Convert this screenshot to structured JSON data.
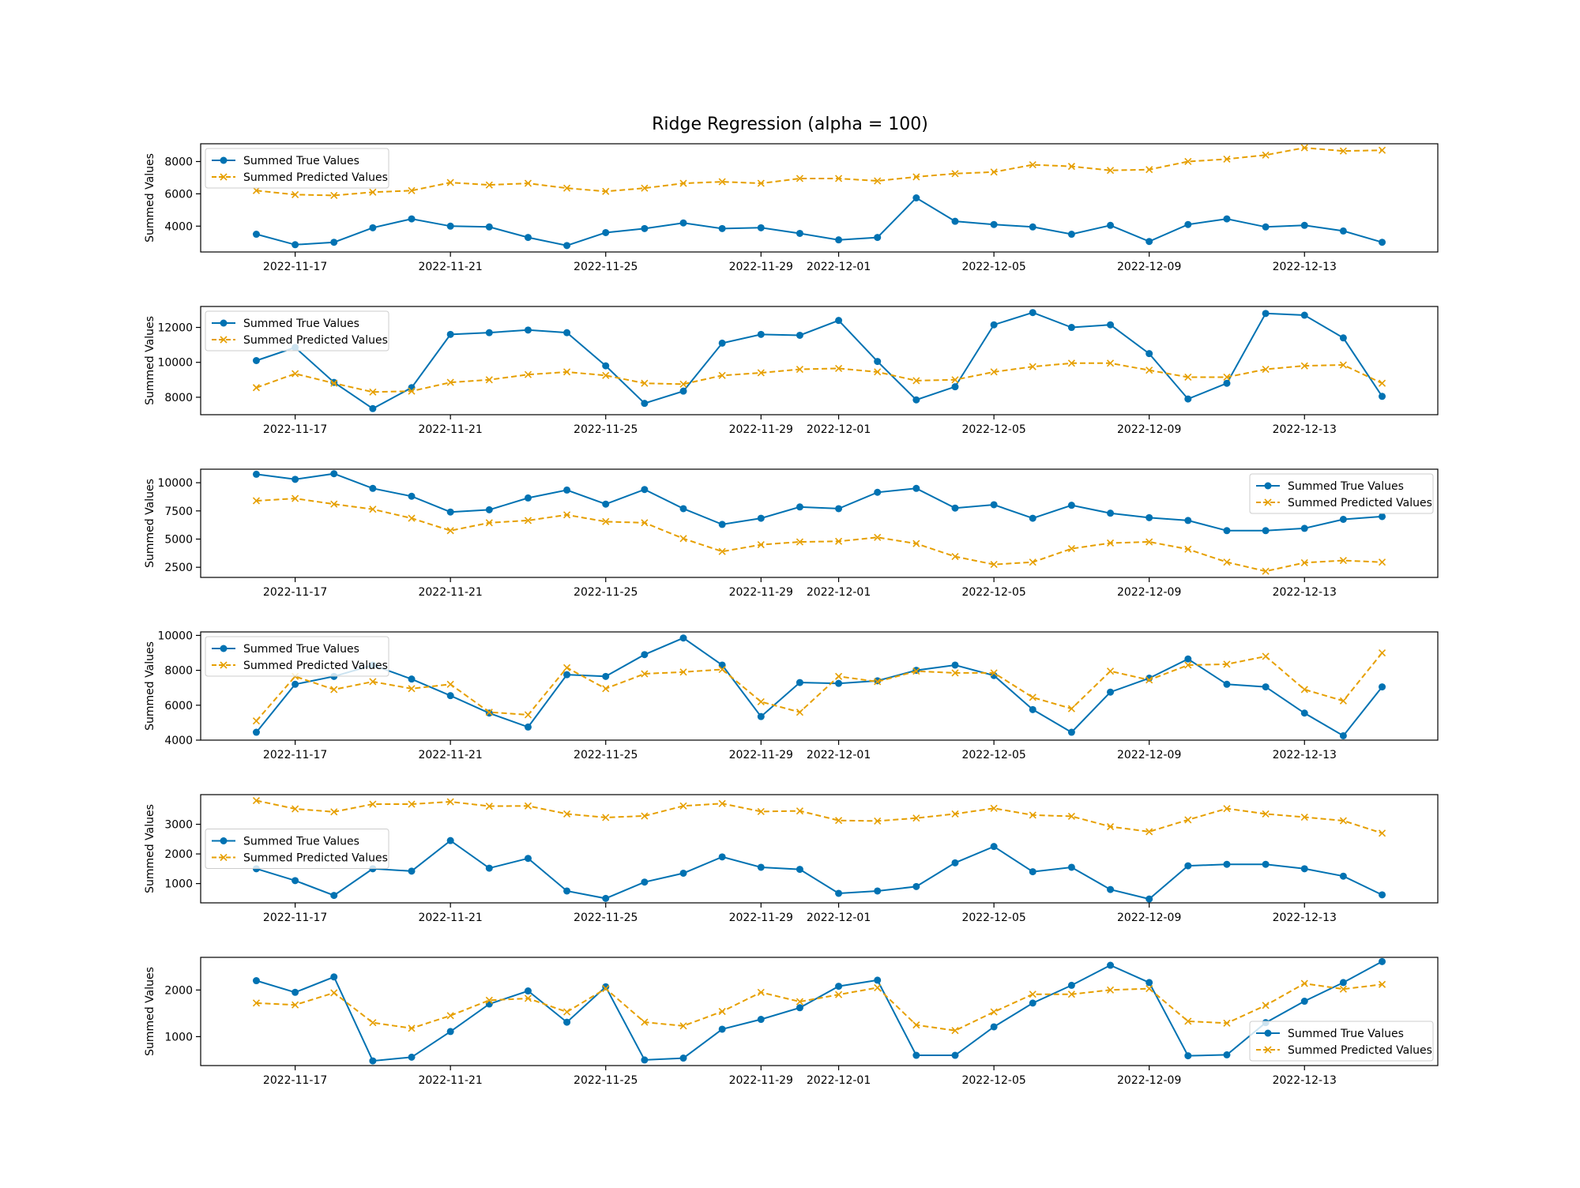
{
  "figure": {
    "title": "Ridge Regression (alpha = 100)",
    "colors": {
      "true": "#0072B2",
      "predicted": "#E69F00"
    }
  },
  "chart_data": [
    {
      "type": "line",
      "ylabel": "Summed Values",
      "xlabel": "",
      "x": [
        "2022-11-16",
        "2022-11-17",
        "2022-11-18",
        "2022-11-19",
        "2022-11-20",
        "2022-11-21",
        "2022-11-22",
        "2022-11-23",
        "2022-11-24",
        "2022-11-25",
        "2022-11-26",
        "2022-11-27",
        "2022-11-28",
        "2022-11-29",
        "2022-11-30",
        "2022-12-01",
        "2022-12-02",
        "2022-12-03",
        "2022-12-04",
        "2022-12-05",
        "2022-12-06",
        "2022-12-07",
        "2022-12-08",
        "2022-12-09",
        "2022-12-10",
        "2022-12-11",
        "2022-12-12",
        "2022-12-13",
        "2022-12-14",
        "2022-12-15"
      ],
      "xticks": [
        "2022-11-17",
        "2022-11-21",
        "2022-11-25",
        "2022-11-29",
        "2022-12-01",
        "2022-12-05",
        "2022-12-09",
        "2022-12-13"
      ],
      "ylim": [
        2400,
        9100
      ],
      "yticks": [
        4000,
        6000,
        8000
      ],
      "legend": "upper left",
      "series": [
        {
          "name": "Summed True Values",
          "values": [
            3500,
            2850,
            3000,
            3900,
            4450,
            4000,
            3950,
            3300,
            2800,
            3600,
            3850,
            4200,
            3850,
            3900,
            3550,
            3150,
            3300,
            5750,
            4300,
            4100,
            3950,
            3500,
            4050,
            3050,
            4100,
            4450,
            3950,
            4050,
            3700,
            3000
          ]
        },
        {
          "name": "Summed Predicted Values",
          "values": [
            6200,
            5950,
            5900,
            6100,
            6200,
            6700,
            6550,
            6650,
            6350,
            6150,
            6350,
            6650,
            6750,
            6650,
            6950,
            6950,
            6800,
            7050,
            7250,
            7350,
            7800,
            7700,
            7450,
            7500,
            8000,
            8150,
            8400,
            8850,
            8650,
            8700
          ]
        }
      ]
    },
    {
      "type": "line",
      "ylabel": "Summed Values",
      "xlabel": "",
      "x": [
        "2022-11-16",
        "2022-11-17",
        "2022-11-18",
        "2022-11-19",
        "2022-11-20",
        "2022-11-21",
        "2022-11-22",
        "2022-11-23",
        "2022-11-24",
        "2022-11-25",
        "2022-11-26",
        "2022-11-27",
        "2022-11-28",
        "2022-11-29",
        "2022-11-30",
        "2022-12-01",
        "2022-12-02",
        "2022-12-03",
        "2022-12-04",
        "2022-12-05",
        "2022-12-06",
        "2022-12-07",
        "2022-12-08",
        "2022-12-09",
        "2022-12-10",
        "2022-12-11",
        "2022-12-12",
        "2022-12-13",
        "2022-12-14",
        "2022-12-15"
      ],
      "xticks": [
        "2022-11-17",
        "2022-11-21",
        "2022-11-25",
        "2022-11-29",
        "2022-12-01",
        "2022-12-05",
        "2022-12-09",
        "2022-12-13"
      ],
      "ylim": [
        7000,
        13200
      ],
      "yticks": [
        8000,
        10000,
        12000
      ],
      "legend": "upper left",
      "series": [
        {
          "name": "Summed True Values",
          "values": [
            10100,
            10850,
            8850,
            7350,
            8550,
            11600,
            11700,
            11850,
            11700,
            9800,
            7650,
            8350,
            11100,
            11600,
            11550,
            12400,
            10050,
            7850,
            8600,
            12150,
            12850,
            12000,
            12150,
            10500,
            7900,
            8800,
            12800,
            12700,
            11400,
            8050
          ]
        },
        {
          "name": "Summed Predicted Values",
          "values": [
            8550,
            9350,
            8800,
            8300,
            8350,
            8850,
            9000,
            9300,
            9450,
            9250,
            8800,
            8750,
            9250,
            9400,
            9600,
            9650,
            9450,
            8950,
            9000,
            9450,
            9750,
            9950,
            9950,
            9550,
            9150,
            9150,
            9600,
            9800,
            9850,
            8800
          ]
        }
      ]
    },
    {
      "type": "line",
      "ylabel": "Summed Values",
      "xlabel": "",
      "x": [
        "2022-11-16",
        "2022-11-17",
        "2022-11-18",
        "2022-11-19",
        "2022-11-20",
        "2022-11-21",
        "2022-11-22",
        "2022-11-23",
        "2022-11-24",
        "2022-11-25",
        "2022-11-26",
        "2022-11-27",
        "2022-11-28",
        "2022-11-29",
        "2022-11-30",
        "2022-12-01",
        "2022-12-02",
        "2022-12-03",
        "2022-12-04",
        "2022-12-05",
        "2022-12-06",
        "2022-12-07",
        "2022-12-08",
        "2022-12-09",
        "2022-12-10",
        "2022-12-11",
        "2022-12-12",
        "2022-12-13",
        "2022-12-14",
        "2022-12-15"
      ],
      "xticks": [
        "2022-11-17",
        "2022-11-21",
        "2022-11-25",
        "2022-11-29",
        "2022-12-01",
        "2022-12-05",
        "2022-12-09",
        "2022-12-13"
      ],
      "ylim": [
        1600,
        11200
      ],
      "yticks": [
        2500,
        5000,
        7500,
        10000
      ],
      "legend": "upper right",
      "series": [
        {
          "name": "Summed True Values",
          "values": [
            10750,
            10300,
            10800,
            9500,
            8800,
            7400,
            7600,
            8650,
            9350,
            8100,
            9400,
            7700,
            6300,
            6850,
            7850,
            7700,
            9150,
            9500,
            7750,
            8050,
            6850,
            8000,
            7300,
            6900,
            6650,
            5750,
            5750,
            5950,
            6750,
            7000
          ]
        },
        {
          "name": "Summed Predicted Values",
          "values": [
            8400,
            8600,
            8100,
            7650,
            6850,
            5750,
            6450,
            6650,
            7150,
            6550,
            6450,
            5050,
            3900,
            4500,
            4750,
            4800,
            5150,
            4600,
            3450,
            2750,
            2950,
            4150,
            4650,
            4750,
            4100,
            2950,
            2150,
            2900,
            3100,
            2950
          ]
        }
      ]
    },
    {
      "type": "line",
      "ylabel": "Summed Values",
      "xlabel": "",
      "x": [
        "2022-11-16",
        "2022-11-17",
        "2022-11-18",
        "2022-11-19",
        "2022-11-20",
        "2022-11-21",
        "2022-11-22",
        "2022-11-23",
        "2022-11-24",
        "2022-11-25",
        "2022-11-26",
        "2022-11-27",
        "2022-11-28",
        "2022-11-29",
        "2022-11-30",
        "2022-12-01",
        "2022-12-02",
        "2022-12-03",
        "2022-12-04",
        "2022-12-05",
        "2022-12-06",
        "2022-12-07",
        "2022-12-08",
        "2022-12-09",
        "2022-12-10",
        "2022-12-11",
        "2022-12-12",
        "2022-12-13",
        "2022-12-14",
        "2022-12-15"
      ],
      "xticks": [
        "2022-11-17",
        "2022-11-21",
        "2022-11-25",
        "2022-11-29",
        "2022-12-01",
        "2022-12-05",
        "2022-12-09",
        "2022-12-13"
      ],
      "ylim": [
        4000,
        10200
      ],
      "yticks": [
        4000,
        6000,
        8000,
        10000
      ],
      "legend": "upper left",
      "series": [
        {
          "name": "Summed True Values",
          "values": [
            4450,
            7200,
            7650,
            8300,
            7500,
            6550,
            5550,
            4750,
            7750,
            7650,
            8900,
            9850,
            8300,
            5350,
            7300,
            7250,
            7400,
            8000,
            8300,
            7700,
            5750,
            4450,
            6750,
            7550,
            8650,
            7200,
            7050,
            5550,
            4250,
            7050
          ]
        },
        {
          "name": "Summed Predicted Values",
          "values": [
            5100,
            7650,
            6900,
            7350,
            6950,
            7200,
            5600,
            5450,
            8150,
            6950,
            7800,
            7900,
            8050,
            6200,
            5600,
            7650,
            7350,
            7950,
            7850,
            7850,
            6450,
            5800,
            7950,
            7450,
            8300,
            8350,
            8800,
            6900,
            6250,
            9000
          ]
        }
      ]
    },
    {
      "type": "line",
      "ylabel": "Summed Values",
      "xlabel": "",
      "x": [
        "2022-11-16",
        "2022-11-17",
        "2022-11-18",
        "2022-11-19",
        "2022-11-20",
        "2022-11-21",
        "2022-11-22",
        "2022-11-23",
        "2022-11-24",
        "2022-11-25",
        "2022-11-26",
        "2022-11-27",
        "2022-11-28",
        "2022-11-29",
        "2022-11-30",
        "2022-12-01",
        "2022-12-02",
        "2022-12-03",
        "2022-12-04",
        "2022-12-05",
        "2022-12-06",
        "2022-12-07",
        "2022-12-08",
        "2022-12-09",
        "2022-12-10",
        "2022-12-11",
        "2022-12-12",
        "2022-12-13",
        "2022-12-14",
        "2022-12-15"
      ],
      "xticks": [
        "2022-11-17",
        "2022-11-21",
        "2022-11-25",
        "2022-11-29",
        "2022-12-01",
        "2022-12-05",
        "2022-12-09",
        "2022-12-13"
      ],
      "ylim": [
        350,
        4000
      ],
      "yticks": [
        1000,
        2000,
        3000
      ],
      "legend": "center left",
      "series": [
        {
          "name": "Summed True Values",
          "values": [
            1500,
            1100,
            600,
            1500,
            1420,
            2450,
            1520,
            1850,
            750,
            500,
            1050,
            1350,
            1900,
            1550,
            1480,
            670,
            750,
            900,
            1700,
            2250,
            1400,
            1550,
            800,
            480,
            1600,
            1650,
            1650,
            1500,
            1250,
            620
          ]
        },
        {
          "name": "Summed Predicted Values",
          "values": [
            3800,
            3520,
            3420,
            3680,
            3680,
            3760,
            3610,
            3620,
            3350,
            3230,
            3280,
            3620,
            3700,
            3430,
            3450,
            3130,
            3110,
            3210,
            3350,
            3540,
            3310,
            3270,
            2920,
            2750,
            3150,
            3530,
            3350,
            3240,
            3120,
            2700
          ]
        }
      ]
    },
    {
      "type": "line",
      "ylabel": "Summed Values",
      "xlabel": "",
      "x": [
        "2022-11-16",
        "2022-11-17",
        "2022-11-18",
        "2022-11-19",
        "2022-11-20",
        "2022-11-21",
        "2022-11-22",
        "2022-11-23",
        "2022-11-24",
        "2022-11-25",
        "2022-11-26",
        "2022-11-27",
        "2022-11-28",
        "2022-11-29",
        "2022-11-30",
        "2022-12-01",
        "2022-12-02",
        "2022-12-03",
        "2022-12-04",
        "2022-12-05",
        "2022-12-06",
        "2022-12-07",
        "2022-12-08",
        "2022-12-09",
        "2022-12-10",
        "2022-12-11",
        "2022-12-12",
        "2022-12-13",
        "2022-12-14",
        "2022-12-15"
      ],
      "xticks": [
        "2022-11-17",
        "2022-11-21",
        "2022-11-25",
        "2022-11-29",
        "2022-12-01",
        "2022-12-05",
        "2022-12-09",
        "2022-12-13"
      ],
      "ylim": [
        380,
        2700
      ],
      "yticks": [
        1000,
        2000
      ],
      "legend": "lower right",
      "series": [
        {
          "name": "Summed True Values",
          "values": [
            2200,
            1950,
            2280,
            480,
            560,
            1110,
            1700,
            1980,
            1310,
            2070,
            500,
            540,
            1160,
            1370,
            1620,
            2080,
            2210,
            600,
            600,
            1210,
            1720,
            2100,
            2530,
            2160,
            590,
            610,
            1300,
            1760,
            2160,
            2610
          ]
        },
        {
          "name": "Summed Predicted Values",
          "values": [
            1720,
            1680,
            1940,
            1300,
            1180,
            1450,
            1780,
            1820,
            1530,
            2030,
            1310,
            1230,
            1540,
            1950,
            1750,
            1900,
            2050,
            1250,
            1130,
            1530,
            1910,
            1910,
            2000,
            2030,
            1330,
            1290,
            1670,
            2140,
            2020,
            2120
          ]
        }
      ]
    }
  ]
}
